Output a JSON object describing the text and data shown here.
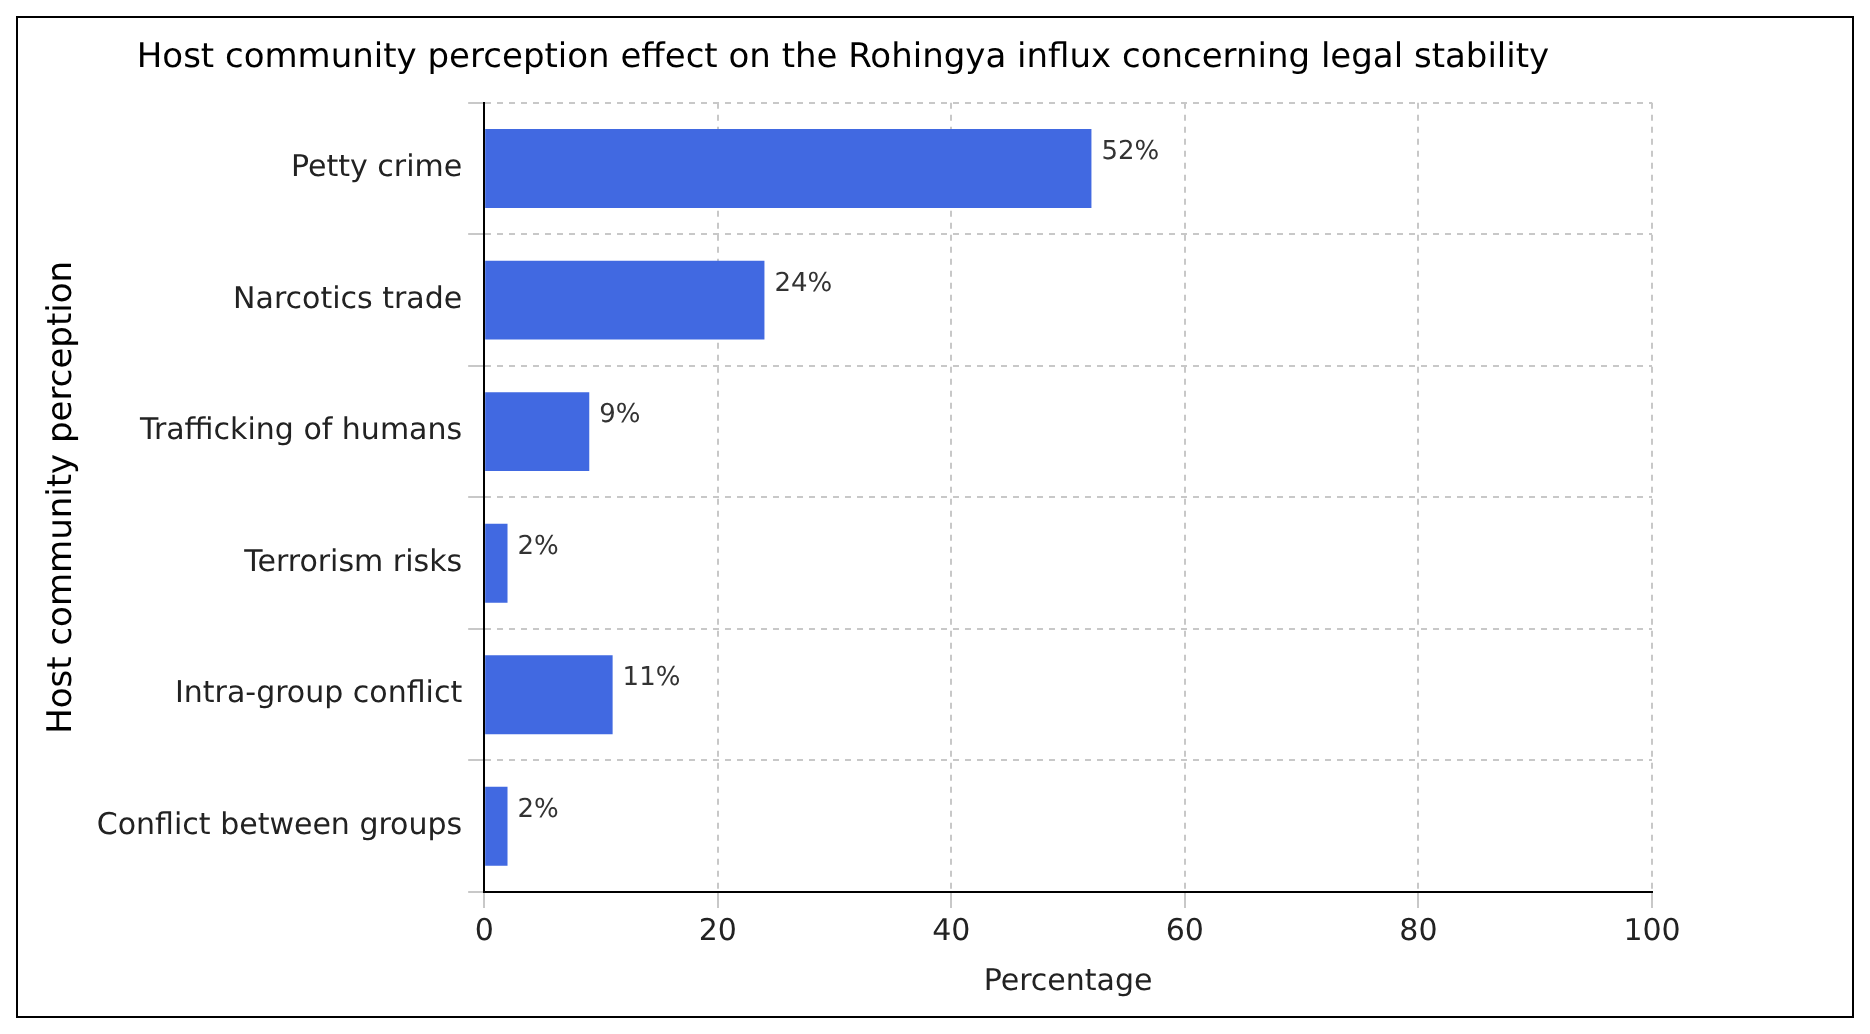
{
  "chart_data": {
    "type": "bar",
    "orientation": "horizontal",
    "title": "Host community perception effect on the Rohingya influx concerning legal stability",
    "xlabel": "Percentage",
    "ylabel": "Host community perception",
    "categories": [
      "Petty crime",
      "Narcotics trade",
      "Trafficking of humans",
      "Terrorism risks",
      "Intra-group conflict",
      "Conflict between groups"
    ],
    "values": [
      52,
      24,
      9,
      2,
      11,
      2
    ],
    "value_labels": [
      "52%",
      "24%",
      "9%",
      "2%",
      "11%",
      "2%"
    ],
    "color": "#4169e1",
    "xlim": [
      0,
      100
    ],
    "xticks": [
      0,
      20,
      40,
      60,
      80,
      100
    ],
    "grid": true
  }
}
